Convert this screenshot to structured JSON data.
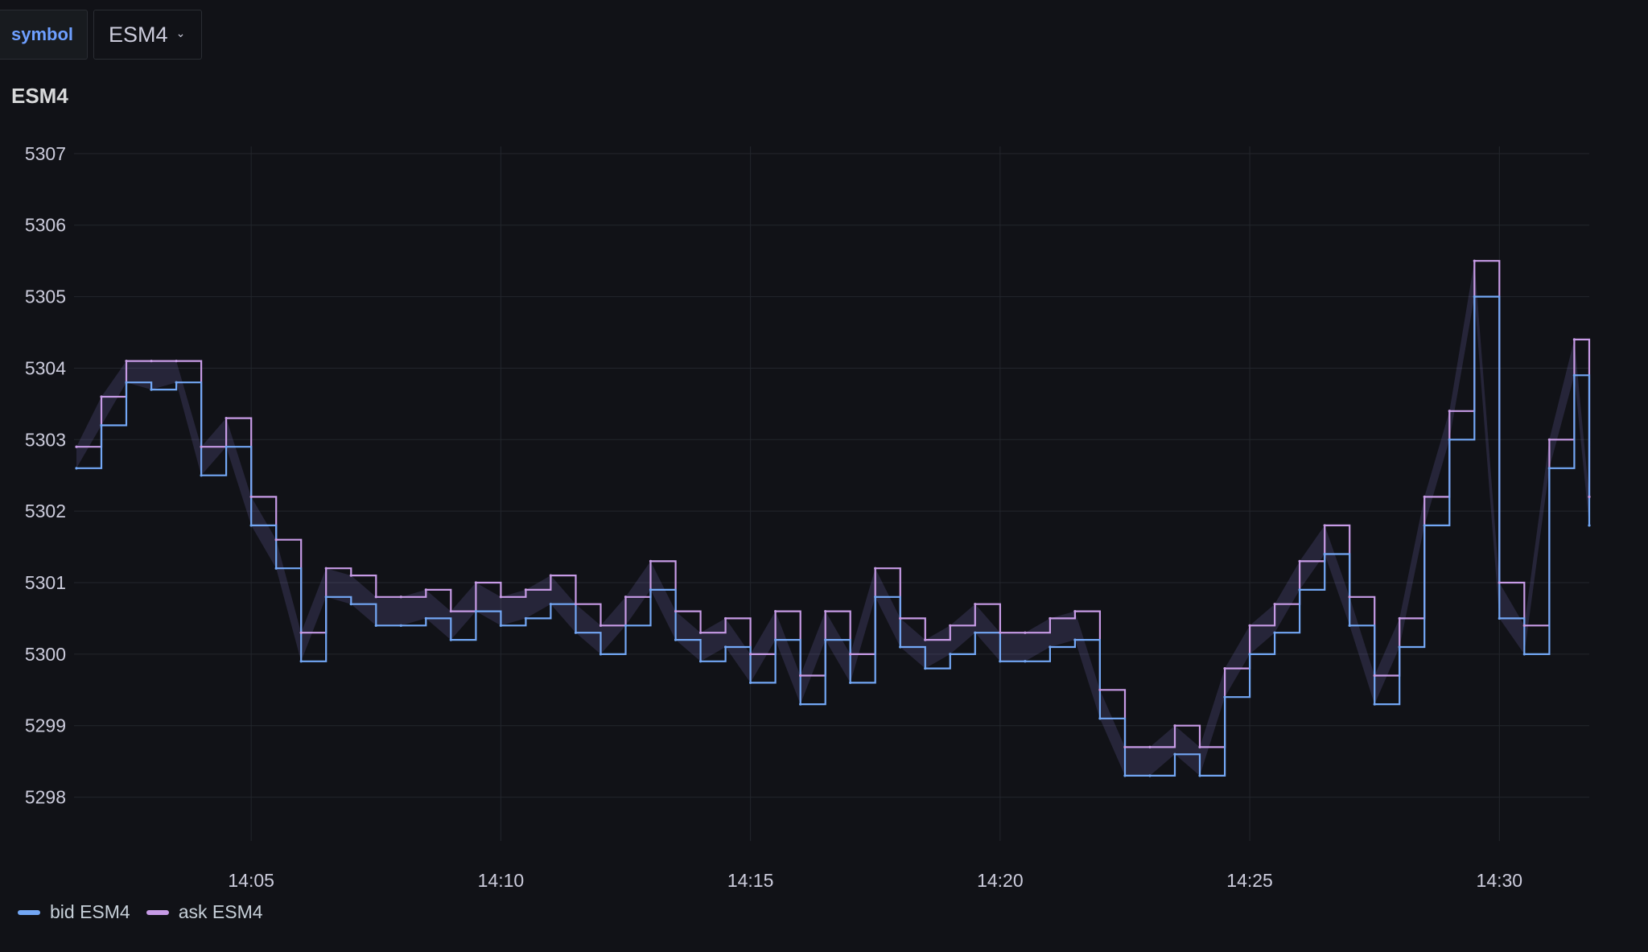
{
  "variables": {
    "label": "symbol",
    "selected": "ESM4"
  },
  "panel": {
    "title": "ESM4"
  },
  "colors": {
    "background": "#111217",
    "grid": "#23262c",
    "bid": "#73a7f5",
    "ask": "#c79be6",
    "variable_label": "#6e9fff"
  },
  "chart_data": {
    "type": "line",
    "title": "ESM4",
    "xlabel": "",
    "ylabel": "",
    "x_ticks": [
      "14:05",
      "14:10",
      "14:15",
      "14:20",
      "14:25",
      "14:30"
    ],
    "xlim": [
      "14:01:30",
      "14:31:48"
    ],
    "y_ticks": [
      5298,
      5299,
      5300,
      5301,
      5302,
      5303,
      5304,
      5305,
      5306,
      5307
    ],
    "ylim": [
      5297.5,
      5307.1
    ],
    "grid": true,
    "legend_position": "bottom-left",
    "series": [
      {
        "name": "bid ESM4",
        "color": "#73a7f5"
      },
      {
        "name": "ask ESM4",
        "color": "#c79be6"
      }
    ],
    "x": [
      "14:01:30",
      "14:02:00",
      "14:02:30",
      "14:03:00",
      "14:03:30",
      "14:04:00",
      "14:04:30",
      "14:05:00",
      "14:05:30",
      "14:06:00",
      "14:06:30",
      "14:07:00",
      "14:07:30",
      "14:08:00",
      "14:08:30",
      "14:09:00",
      "14:09:30",
      "14:10:00",
      "14:10:30",
      "14:11:00",
      "14:11:30",
      "14:12:00",
      "14:12:30",
      "14:13:00",
      "14:13:30",
      "14:14:00",
      "14:14:30",
      "14:15:00",
      "14:15:30",
      "14:16:00",
      "14:16:30",
      "14:17:00",
      "14:17:30",
      "14:18:00",
      "14:18:30",
      "14:19:00",
      "14:19:30",
      "14:20:00",
      "14:20:30",
      "14:21:00",
      "14:21:30",
      "14:22:00",
      "14:22:30",
      "14:23:00",
      "14:23:30",
      "14:24:00",
      "14:24:30",
      "14:25:00",
      "14:25:30",
      "14:26:00",
      "14:26:30",
      "14:27:00",
      "14:27:30",
      "14:28:00",
      "14:28:30",
      "14:29:00",
      "14:29:30",
      "14:30:00",
      "14:30:30",
      "14:31:00",
      "14:31:30",
      "14:31:48"
    ],
    "bid": [
      5302.6,
      5303.2,
      5303.8,
      5303.7,
      5303.8,
      5302.5,
      5302.9,
      5301.8,
      5301.2,
      5299.9,
      5300.8,
      5300.7,
      5300.4,
      5300.4,
      5300.5,
      5300.2,
      5300.6,
      5300.4,
      5300.5,
      5300.7,
      5300.3,
      5300.0,
      5300.4,
      5300.9,
      5300.2,
      5299.9,
      5300.1,
      5299.6,
      5300.2,
      5299.3,
      5300.2,
      5299.6,
      5300.8,
      5300.1,
      5299.8,
      5300.0,
      5300.3,
      5299.9,
      5299.9,
      5300.1,
      5300.2,
      5299.1,
      5298.3,
      5298.3,
      5298.6,
      5298.3,
      5299.4,
      5300.0,
      5300.3,
      5300.9,
      5301.4,
      5300.4,
      5299.3,
      5300.1,
      5301.8,
      5303.0,
      5305.0,
      5300.5,
      5300.0,
      5302.6,
      5303.9,
      5301.8
    ],
    "ask": [
      5302.9,
      5303.6,
      5304.1,
      5304.1,
      5304.1,
      5302.9,
      5303.3,
      5302.2,
      5301.6,
      5300.3,
      5301.2,
      5301.1,
      5300.8,
      5300.8,
      5300.9,
      5300.6,
      5301.0,
      5300.8,
      5300.9,
      5301.1,
      5300.7,
      5300.4,
      5300.8,
      5301.3,
      5300.6,
      5300.3,
      5300.5,
      5300.0,
      5300.6,
      5299.7,
      5300.6,
      5300.0,
      5301.2,
      5300.5,
      5300.2,
      5300.4,
      5300.7,
      5300.3,
      5300.3,
      5300.5,
      5300.6,
      5299.5,
      5298.7,
      5298.7,
      5299.0,
      5298.7,
      5299.8,
      5300.4,
      5300.7,
      5301.3,
      5301.8,
      5300.8,
      5299.7,
      5300.5,
      5302.2,
      5303.4,
      5305.5,
      5301.0,
      5300.4,
      5303.0,
      5304.4,
      5302.2
    ]
  }
}
